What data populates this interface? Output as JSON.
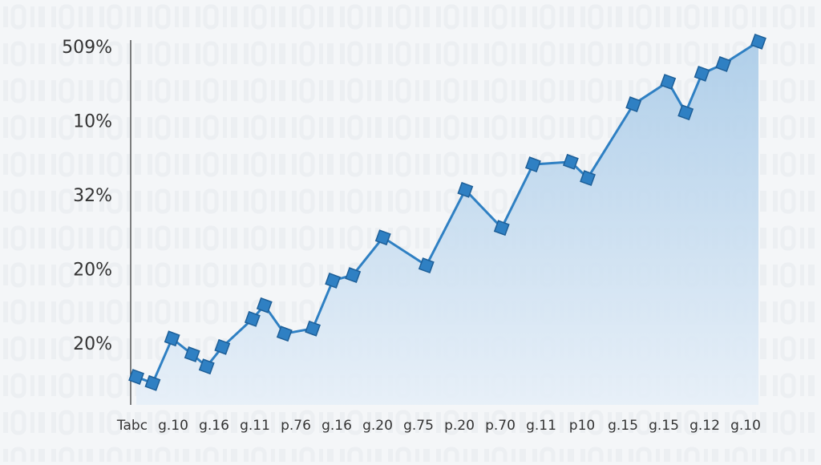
{
  "chart_data": {
    "type": "line",
    "y_labels": [
      "509%",
      "10%",
      "32%",
      "20%",
      "20%"
    ],
    "x_labels": [
      "Tabc",
      "g.10",
      "g.16",
      "g.11",
      "p.76",
      "g.16",
      "g.20",
      "g.75",
      "p.20",
      "p.70",
      "g.11",
      "p10",
      "g.15",
      "g.15",
      "g.12",
      "g.10"
    ],
    "xlim": [
      0,
      100
    ],
    "ylim": [
      0,
      100
    ],
    "series": [
      {
        "color": "#2f80c3",
        "x": [
          0.9,
          3.5,
          6.6,
          9.8,
          12.1,
          14.6,
          19.4,
          21.3,
          24.5,
          29.0,
          32.2,
          35.4,
          40.2,
          47.1,
          53.3,
          59.1,
          64.1,
          70.1,
          72.8,
          80.1,
          85.6,
          88.4,
          91.0,
          94.4,
          100
        ],
        "values": [
          7.6,
          5.9,
          18.0,
          13.7,
          10.4,
          15.7,
          23.3,
          27.0,
          19.3,
          20.7,
          33.7,
          35.2,
          45.4,
          37.8,
          58.3,
          48.0,
          65.2,
          65.9,
          61.5,
          81.5,
          87.6,
          79.3,
          89.8,
          92.4,
          98.5
        ]
      }
    ]
  }
}
